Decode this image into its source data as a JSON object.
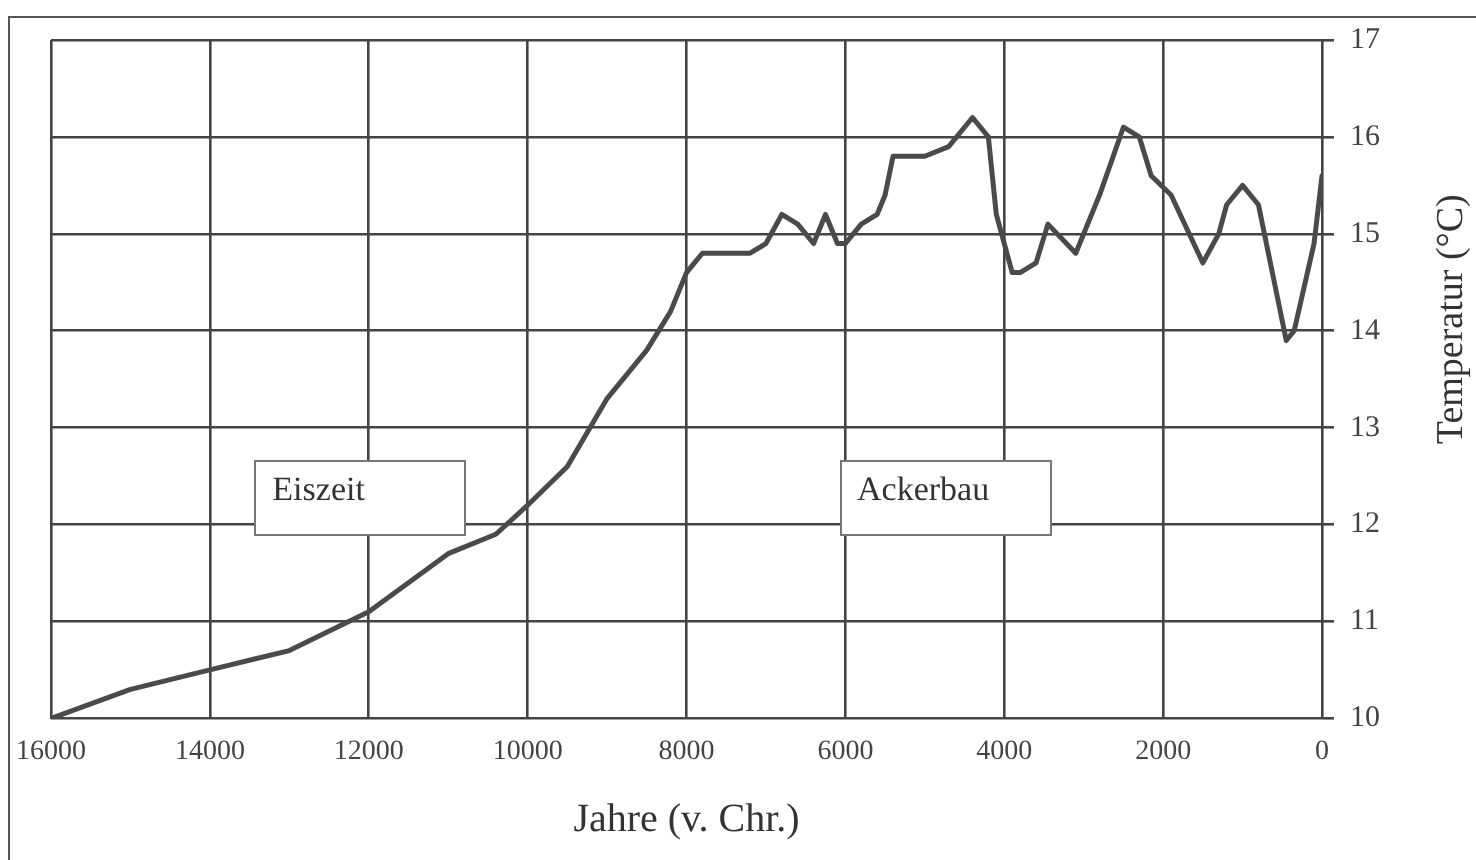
{
  "chart_data": {
    "type": "line",
    "xlabel": "Jahre (v. Chr.)",
    "ylabel": "Temperatur (°C)",
    "annotations": [
      "Eiszeit",
      "Ackerbau"
    ],
    "xlim": [
      16000,
      0
    ],
    "xticks": [
      16000,
      14000,
      12000,
      10000,
      8000,
      6000,
      4000,
      2000,
      0
    ],
    "ylim": [
      10,
      17
    ],
    "yticks": [
      10,
      11,
      12,
      13,
      14,
      15,
      16,
      17
    ],
    "grid": true,
    "legend": false,
    "marker": "none",
    "line_style": "solid",
    "series": [
      {
        "color": "#4a4a4a",
        "x": [
          16000,
          15000,
          14000,
          13000,
          12000,
          11000,
          10400,
          10000,
          9500,
          9000,
          8500,
          8200,
          8000,
          7800,
          7200,
          7000,
          6800,
          6600,
          6400,
          6250,
          6100,
          6000,
          5800,
          5600,
          5500,
          5400,
          5000,
          4700,
          4500,
          4400,
          4200,
          4100,
          3900,
          3800,
          3600,
          3450,
          3100,
          2800,
          2500,
          2300,
          2150,
          1900,
          1500,
          1300,
          1200,
          1000,
          800,
          450,
          350,
          100,
          0
        ],
        "values": [
          10.0,
          10.3,
          10.5,
          10.7,
          11.1,
          11.7,
          11.9,
          12.2,
          12.6,
          13.3,
          13.8,
          14.2,
          14.6,
          14.8,
          14.8,
          14.9,
          15.2,
          15.1,
          14.9,
          15.2,
          14.9,
          14.9,
          15.1,
          15.2,
          15.4,
          15.8,
          15.8,
          15.9,
          16.1,
          16.2,
          16.0,
          15.2,
          14.6,
          14.6,
          14.7,
          15.1,
          14.8,
          15.4,
          16.1,
          16.0,
          15.6,
          15.4,
          14.7,
          15.0,
          15.3,
          15.5,
          15.3,
          13.9,
          14.0,
          14.9,
          15.6
        ]
      }
    ]
  }
}
